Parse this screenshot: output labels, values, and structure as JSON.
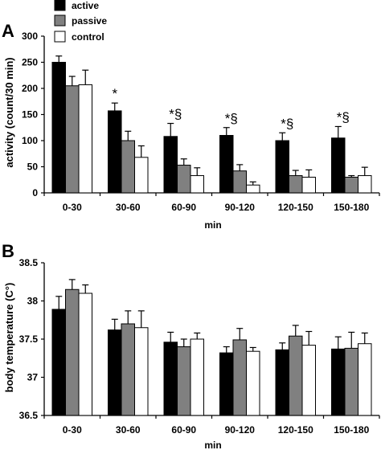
{
  "colors": {
    "active": "#000000",
    "passive": "#808080",
    "control": "#ffffff",
    "axis": "#000000"
  },
  "legend": [
    {
      "label": "active",
      "color": "#000000"
    },
    {
      "label": "passive",
      "color": "#808080"
    },
    {
      "label": "control",
      "color": "#ffffff"
    }
  ],
  "chart_data": [
    {
      "panel": "A",
      "type": "bar",
      "ylabel": "activity (count/30 min)",
      "xlabel": "min",
      "categories": [
        "0-30",
        "30-60",
        "60-90",
        "90-120",
        "120-150",
        "150-180"
      ],
      "ylim": [
        0,
        300
      ],
      "yticks": [
        "0",
        "50",
        "100",
        "150",
        "200",
        "250",
        "300"
      ],
      "legend_position": "top-left",
      "series": [
        {
          "name": "active",
          "values": [
            250,
            157,
            108,
            110,
            100,
            105
          ],
          "errors": [
            12,
            15,
            25,
            15,
            15,
            22
          ]
        },
        {
          "name": "passive",
          "values": [
            205,
            100,
            53,
            42,
            33,
            30
          ],
          "errors": [
            18,
            18,
            12,
            12,
            10,
            3
          ]
        },
        {
          "name": "control",
          "values": [
            207,
            68,
            33,
            15,
            30,
            33
          ],
          "errors": [
            28,
            22,
            15,
            6,
            14,
            16
          ]
        }
      ],
      "annotations": [
        "*",
        "*§",
        "*§",
        "*§",
        "*§"
      ]
    },
    {
      "panel": "B",
      "type": "bar",
      "ylabel": "body temperature (C°)",
      "xlabel": "min",
      "categories": [
        "0-30",
        "30-60",
        "60-90",
        "90-120",
        "120-150",
        "150-180"
      ],
      "ylim": [
        36.5,
        38.5
      ],
      "yticks": [
        "36.5",
        "37",
        "37.5",
        "38",
        "38.5"
      ],
      "series": [
        {
          "name": "active",
          "values": [
            37.89,
            37.62,
            37.46,
            37.32,
            37.36,
            37.37
          ],
          "errors": [
            0.17,
            0.14,
            0.13,
            0.08,
            0.09,
            0.16
          ]
        },
        {
          "name": "passive",
          "values": [
            38.15,
            37.7,
            37.4,
            37.49,
            37.54,
            37.38
          ],
          "errors": [
            0.13,
            0.17,
            0.1,
            0.15,
            0.14,
            0.21
          ]
        },
        {
          "name": "control",
          "values": [
            38.1,
            37.65,
            37.5,
            37.34,
            37.42,
            37.44
          ],
          "errors": [
            0.11,
            0.22,
            0.08,
            0.05,
            0.18,
            0.14
          ]
        }
      ]
    }
  ]
}
